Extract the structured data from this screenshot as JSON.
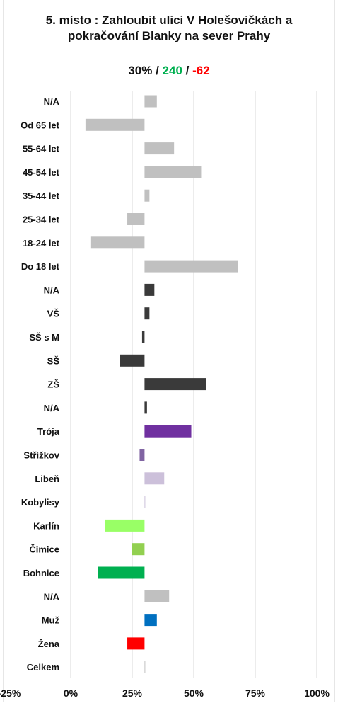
{
  "header": {
    "title_line1": "5. místo : Zahloubit ulici V Holešovičkách a",
    "title_line2": "pokračování Blanky na sever Prahy",
    "stat_pct": "30%",
    "stat_sep1": " / ",
    "stat_pos": "240",
    "stat_sep2": " / ",
    "stat_neg": "-62"
  },
  "chart_data": {
    "type": "bar",
    "orientation": "horizontal",
    "baseline": 30,
    "xlim": [
      -25,
      100
    ],
    "xticks": [
      -25,
      0,
      25,
      50,
      75,
      100
    ],
    "xtick_labels": [
      "-25%",
      "0%",
      "25%",
      "50%",
      "75%",
      "100%"
    ],
    "grid": true,
    "categories": [
      "N/A",
      "Od 65 let",
      "55-64 let",
      "45-54 let",
      "35-44 let",
      "25-34 let",
      "18-24 let",
      "Do 18 let",
      "N/A",
      "VŠ",
      "SŠ s M",
      "SŠ",
      "ZŠ",
      "N/A",
      "Trója",
      "Střížkov",
      "Libeň",
      "Kobylisy",
      "Karlín",
      "Čimice",
      "Bohnice",
      "N/A",
      "Muž",
      "Žena",
      "Celkem"
    ],
    "values": [
      35,
      6,
      42,
      53,
      32,
      23,
      8,
      68,
      34,
      32,
      29,
      20,
      55,
      31,
      49,
      28,
      38,
      30,
      14,
      25,
      11,
      40,
      35,
      23,
      30
    ],
    "colors": [
      "#c0c0c0",
      "#c0c0c0",
      "#c0c0c0",
      "#c0c0c0",
      "#c0c0c0",
      "#c0c0c0",
      "#c0c0c0",
      "#c0c0c0",
      "#3a3a3a",
      "#3a3a3a",
      "#3a3a3a",
      "#3a3a3a",
      "#3a3a3a",
      "#3a3a3a",
      "#7030a0",
      "#8064a2",
      "#ccc0da",
      "#ccc0da",
      "#99ff66",
      "#92d050",
      "#00b050",
      "#c0c0c0",
      "#0070c0",
      "#ff0000",
      "#c0c0c0"
    ]
  }
}
